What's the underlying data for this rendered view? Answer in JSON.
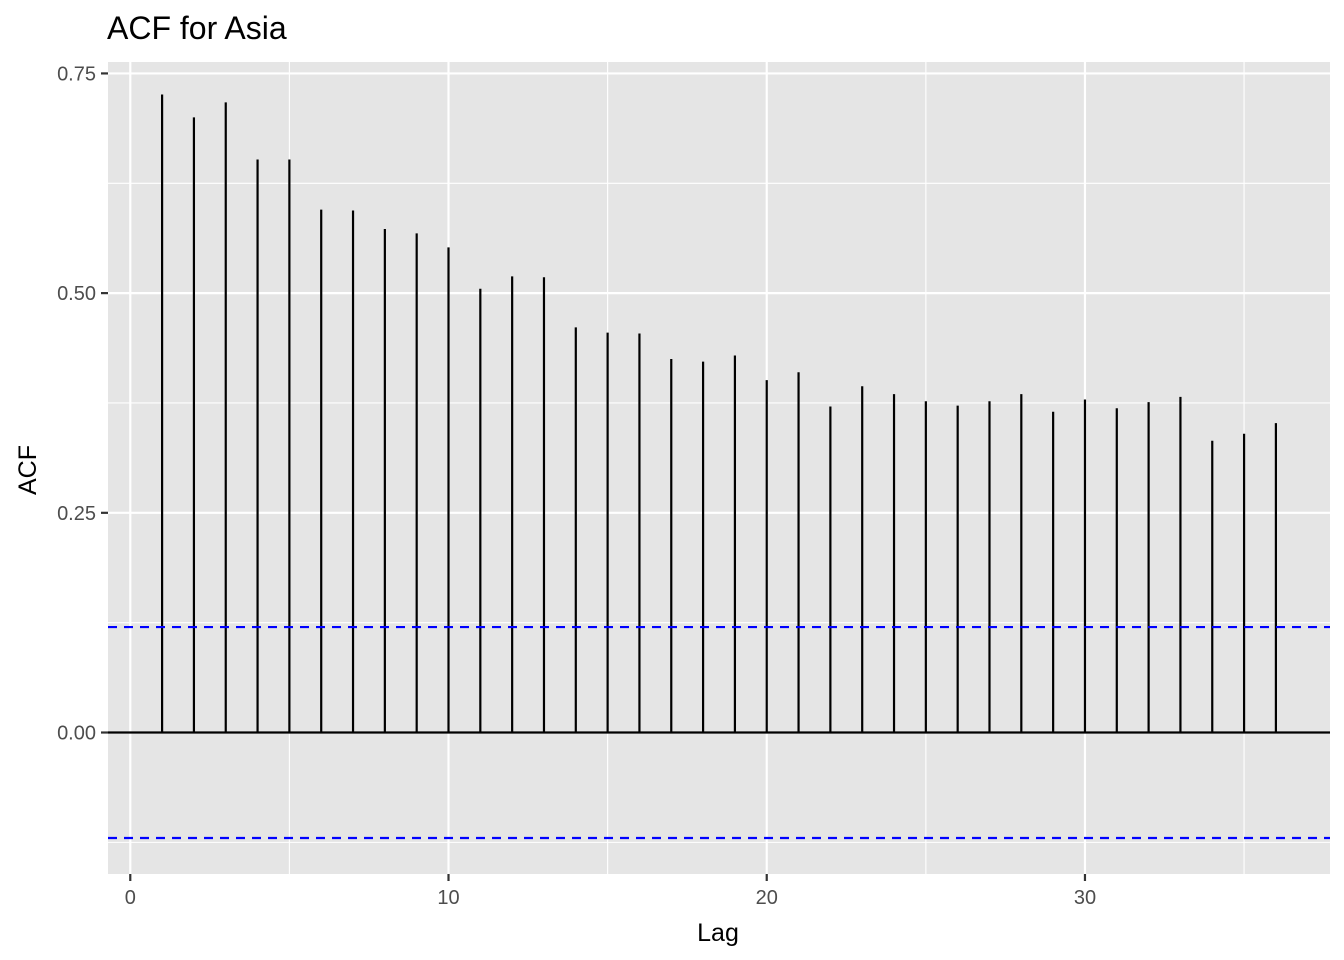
{
  "chart_data": {
    "type": "bar",
    "title": "ACF for Asia",
    "xlabel": "Lag",
    "ylabel": "ACF",
    "xlim": [
      -0.7,
      37.7
    ],
    "ylim": [
      -0.161,
      0.763
    ],
    "x_ticks": [
      {
        "value": 0,
        "label": "0"
      },
      {
        "value": 10,
        "label": "10"
      },
      {
        "value": 20,
        "label": "20"
      },
      {
        "value": 30,
        "label": "30"
      }
    ],
    "y_ticks": [
      {
        "value": 0.0,
        "label": "0.00"
      },
      {
        "value": 0.25,
        "label": "0.25"
      },
      {
        "value": 0.5,
        "label": "0.50"
      },
      {
        "value": 0.75,
        "label": "0.75"
      }
    ],
    "grid": true,
    "confidence_bound": 0.12,
    "colors": {
      "panel_background": "#e5e5e5",
      "grid": "#ffffff",
      "bars": "#000000",
      "confidence_lines": "#0000ff"
    },
    "lags": [
      1,
      2,
      3,
      4,
      5,
      6,
      7,
      8,
      9,
      10,
      11,
      12,
      13,
      14,
      15,
      16,
      17,
      18,
      19,
      20,
      21,
      22,
      23,
      24,
      25,
      26,
      27,
      28,
      29,
      30,
      31,
      32,
      33,
      34,
      35,
      36
    ],
    "values": [
      0.726,
      0.7,
      0.717,
      0.652,
      0.652,
      0.595,
      0.594,
      0.573,
      0.568,
      0.552,
      0.505,
      0.519,
      0.518,
      0.461,
      0.455,
      0.454,
      0.425,
      0.422,
      0.429,
      0.401,
      0.41,
      0.371,
      0.394,
      0.385,
      0.377,
      0.372,
      0.377,
      0.385,
      0.365,
      0.379,
      0.369,
      0.376,
      0.382,
      0.332,
      0.34,
      0.352
    ]
  }
}
